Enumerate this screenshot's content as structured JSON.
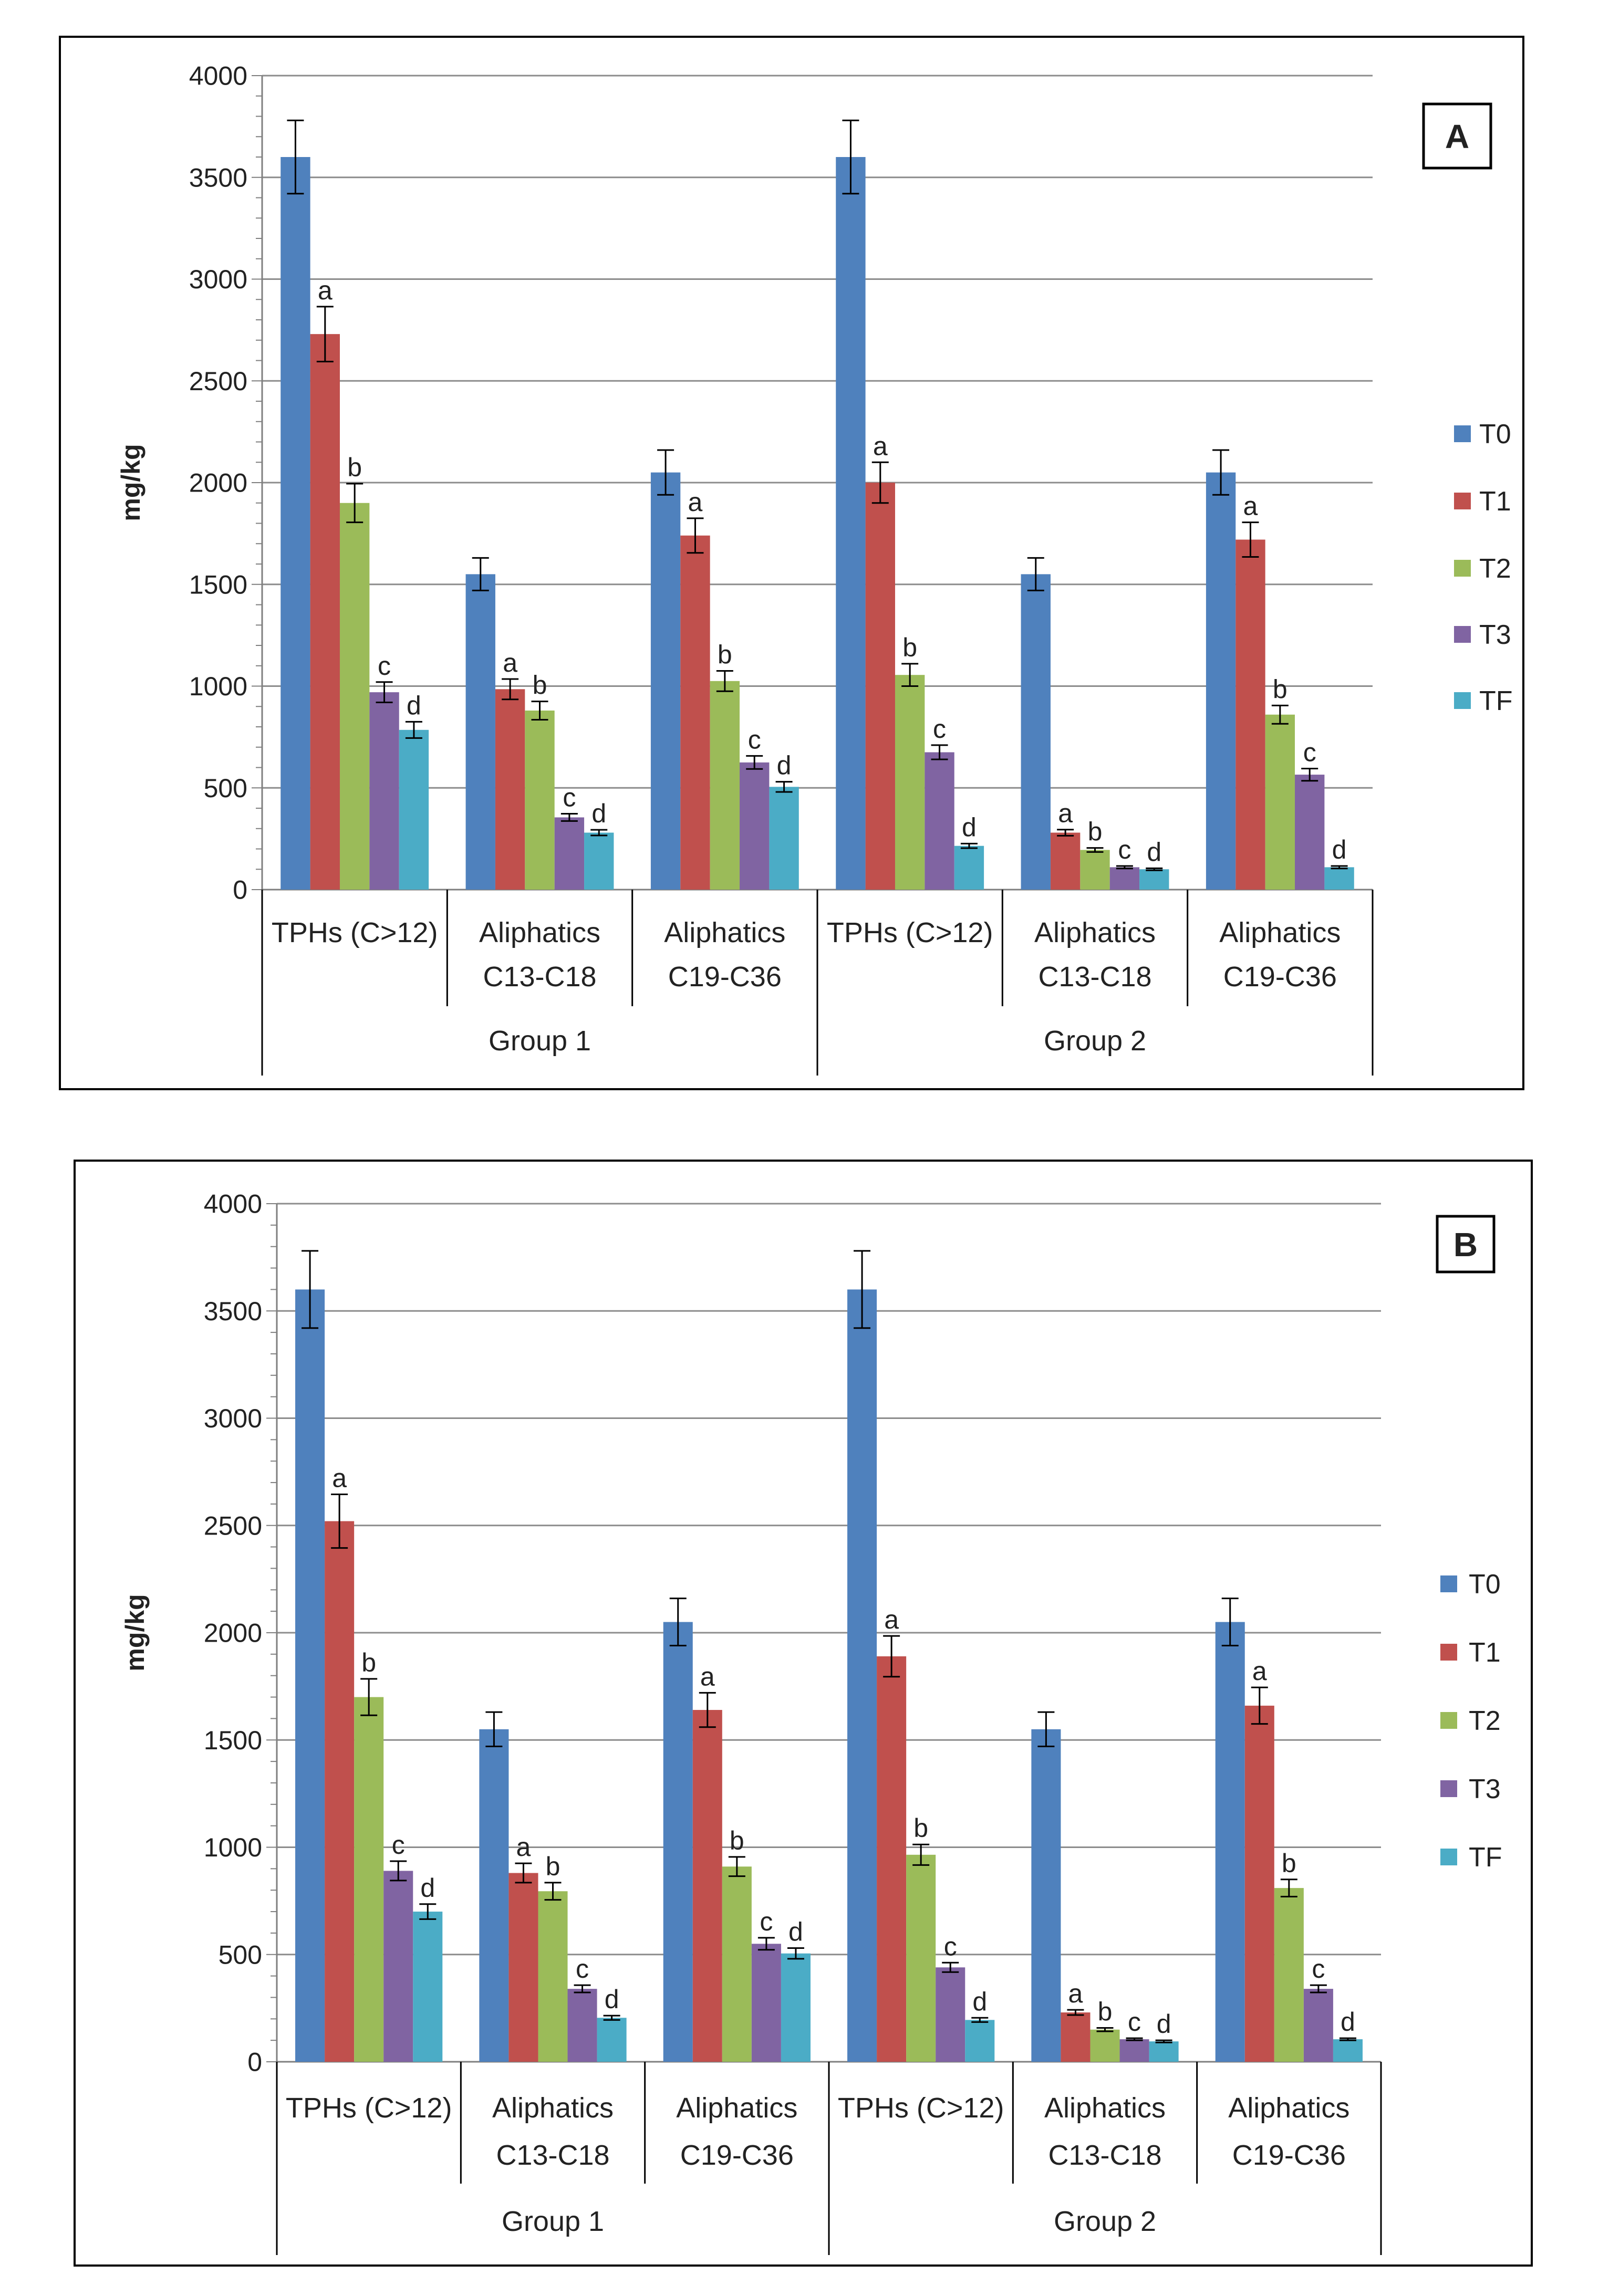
{
  "chart_data": [
    {
      "type": "bar",
      "panel_label": "A",
      "ylabel": "mg/kg",
      "ylim": [
        0,
        4000
      ],
      "yticks": [
        "0",
        "500",
        "1000",
        "1500",
        "2000",
        "2500",
        "3000",
        "3500",
        "4000"
      ],
      "groups": [
        {
          "label": "Group 1",
          "categories": [
            "TPHs (C>12)",
            "Aliphatics C13-C18",
            "Aliphatics C19-C36"
          ]
        },
        {
          "label": "Group 2",
          "categories": [
            "TPHs (C>12)",
            "Aliphatics C13-C18",
            "Aliphatics C19-C36"
          ]
        }
      ],
      "categories": [
        "TPHs (C>12)",
        "Aliphatics C13-C18",
        "Aliphatics C19-C36",
        "TPHs (C>12)",
        "Aliphatics C13-C18",
        "Aliphatics C19-C36"
      ],
      "series": [
        {
          "name": "T0",
          "color": "#4f81bd",
          "values": [
            3600,
            1550,
            2050,
            3600,
            1550,
            2050
          ],
          "errors": [
            180,
            80,
            110,
            180,
            80,
            110
          ],
          "letters": [
            "",
            "",
            "",
            "",
            "",
            ""
          ]
        },
        {
          "name": "T1",
          "color": "#c0504d",
          "values": [
            2730,
            985,
            1740,
            2000,
            280,
            1720
          ],
          "errors": [
            135,
            50,
            85,
            100,
            15,
            85
          ],
          "letters": [
            "a",
            "a",
            "a",
            "a",
            "a",
            "a"
          ]
        },
        {
          "name": "T2",
          "color": "#9bbb59",
          "values": [
            1900,
            880,
            1025,
            1055,
            195,
            860
          ],
          "errors": [
            95,
            45,
            50,
            55,
            10,
            45
          ],
          "letters": [
            "b",
            "b",
            "b",
            "b",
            "b",
            "b"
          ]
        },
        {
          "name": "T3",
          "color": "#8064a2",
          "values": [
            970,
            355,
            625,
            675,
            110,
            565
          ],
          "errors": [
            50,
            18,
            32,
            35,
            6,
            30
          ],
          "letters": [
            "c",
            "c",
            "c",
            "c",
            "c",
            "c"
          ]
        },
        {
          "name": "TF",
          "color": "#4bacc6",
          "values": [
            785,
            280,
            505,
            215,
            100,
            110
          ],
          "errors": [
            40,
            14,
            25,
            11,
            5,
            6
          ],
          "letters": [
            "d",
            "d",
            "d",
            "d",
            "d",
            "d"
          ]
        }
      ]
    },
    {
      "type": "bar",
      "panel_label": "B",
      "ylabel": "mg/kg",
      "ylim": [
        0,
        4000
      ],
      "yticks": [
        "0",
        "500",
        "1000",
        "1500",
        "2000",
        "2500",
        "3000",
        "3500",
        "4000"
      ],
      "groups": [
        {
          "label": "Group 1",
          "categories": [
            "TPHs (C>12)",
            "Aliphatics C13-C18",
            "Aliphatics C19-C36"
          ]
        },
        {
          "label": "Group 2",
          "categories": [
            "TPHs (C>12)",
            "Aliphatics C13-C18",
            "Aliphatics C19-C36"
          ]
        }
      ],
      "categories": [
        "TPHs (C>12)",
        "Aliphatics C13-C18",
        "Aliphatics C19-C36",
        "TPHs (C>12)",
        "Aliphatics C13-C18",
        "Aliphatics C19-C36"
      ],
      "series": [
        {
          "name": "T0",
          "color": "#4f81bd",
          "values": [
            3600,
            1550,
            2050,
            3600,
            1550,
            2050
          ],
          "errors": [
            180,
            80,
            110,
            180,
            80,
            110
          ],
          "letters": [
            "",
            "",
            "",
            "",
            "",
            ""
          ]
        },
        {
          "name": "T1",
          "color": "#c0504d",
          "values": [
            2520,
            880,
            1640,
            1890,
            230,
            1660
          ],
          "errors": [
            125,
            45,
            80,
            95,
            12,
            85
          ],
          "letters": [
            "a",
            "a",
            "a",
            "a",
            "a",
            "a"
          ]
        },
        {
          "name": "T2",
          "color": "#9bbb59",
          "values": [
            1700,
            795,
            910,
            965,
            150,
            810
          ],
          "errors": [
            85,
            40,
            45,
            48,
            8,
            40
          ],
          "letters": [
            "b",
            "b",
            "b",
            "b",
            "b",
            "b"
          ]
        },
        {
          "name": "T3",
          "color": "#8064a2",
          "values": [
            890,
            340,
            550,
            440,
            105,
            340
          ],
          "errors": [
            45,
            17,
            28,
            22,
            5,
            17
          ],
          "letters": [
            "c",
            "c",
            "c",
            "c",
            "c",
            "c"
          ]
        },
        {
          "name": "TF",
          "color": "#4bacc6",
          "values": [
            700,
            205,
            505,
            195,
            95,
            105
          ],
          "errors": [
            35,
            10,
            25,
            10,
            5,
            5
          ],
          "letters": [
            "d",
            "d",
            "d",
            "d",
            "d",
            "d"
          ]
        }
      ]
    }
  ]
}
